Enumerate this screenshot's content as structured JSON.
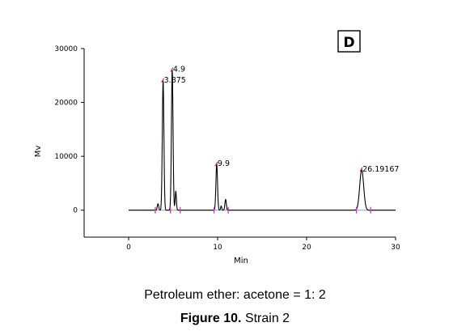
{
  "chart_data": {
    "type": "line",
    "panel_label": "D",
    "xlabel": "Min",
    "ylabel": "Mv",
    "xlim": [
      -5,
      30
    ],
    "ylim": [
      -5000,
      30000
    ],
    "x_ticks": [
      0,
      10,
      20,
      30
    ],
    "y_ticks": [
      0,
      10000,
      20000,
      30000
    ],
    "y_tick_labels": [
      "0",
      "10000",
      "20000",
      "30000"
    ],
    "baseline": 0,
    "trace_range": [
      0,
      30
    ],
    "peaks": [
      {
        "label": "3.875",
        "rt": 3.875,
        "height": 24000,
        "width": 0.09
      },
      {
        "label": "4.9",
        "rt": 4.9,
        "height": 26000,
        "width": 0.09
      },
      {
        "label": "9.9",
        "rt": 9.9,
        "height": 8500,
        "width": 0.09
      },
      {
        "label": "26.19167",
        "rt": 26.19167,
        "height": 7500,
        "width": 0.22
      }
    ],
    "minor_peaks": [
      {
        "rt": 3.3,
        "height": 1200,
        "width": 0.08
      },
      {
        "rt": 5.3,
        "height": 3500,
        "width": 0.07
      },
      {
        "rt": 10.4,
        "height": 800,
        "width": 0.06
      },
      {
        "rt": 10.9,
        "height": 2000,
        "width": 0.08
      }
    ],
    "integration_marks": [
      3.0,
      4.7,
      5.8,
      9.6,
      11.2,
      25.6,
      27.2
    ]
  },
  "caption": {
    "solvent": "Petroleum ether: acetone = 1: 2",
    "figure_label": "Figure 10.",
    "figure_text": "Strain 2"
  },
  "colors": {
    "trace": "#000000",
    "baseline": "#9a9a9a",
    "peak_marker": "#e0206a",
    "integration_mark": "#cc33cc"
  }
}
